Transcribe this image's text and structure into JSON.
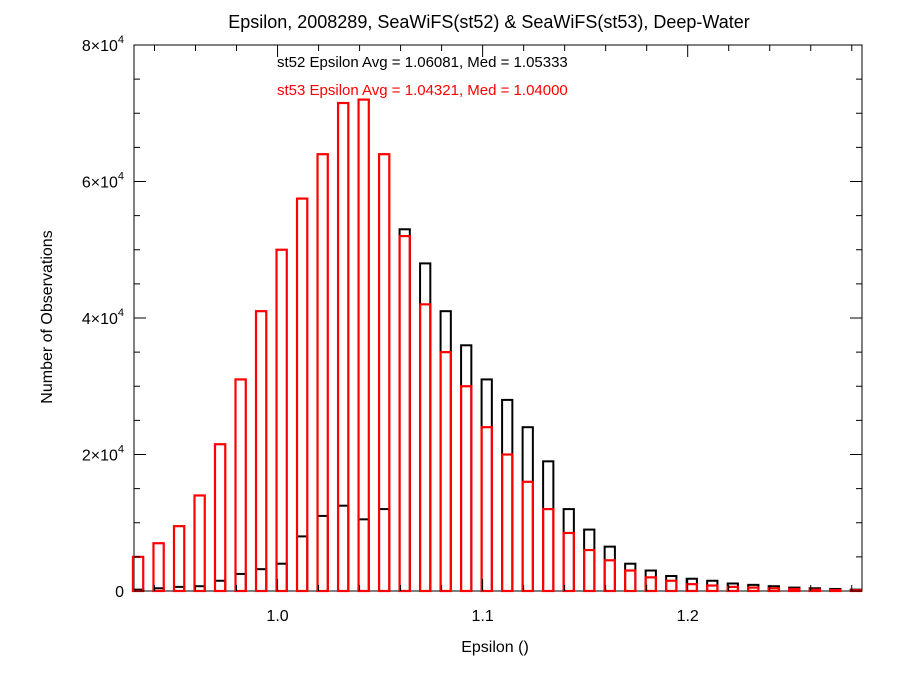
{
  "chart_data": {
    "type": "histogram",
    "title": "Epsilon, 2008289, SeaWiFS(st52) & SeaWiFS(st53), Deep-Water",
    "xlabel": "Epsilon ()",
    "ylabel": "Number of Observations",
    "xlim": [
      0.93,
      1.285
    ],
    "ylim": [
      0,
      80000
    ],
    "x_ticks": [
      {
        "value": 1.0,
        "label": "1.0"
      },
      {
        "value": 1.1,
        "label": "1.1"
      },
      {
        "value": 1.2,
        "label": "1.2"
      }
    ],
    "y_ticks": [
      {
        "value": 0,
        "mantissa": "0",
        "exponent": ""
      },
      {
        "value": 20000,
        "mantissa": "2×10",
        "exponent": "4"
      },
      {
        "value": 40000,
        "mantissa": "4×10",
        "exponent": "4"
      },
      {
        "value": 60000,
        "mantissa": "6×10",
        "exponent": "4"
      },
      {
        "value": 80000,
        "mantissa": "8×10",
        "exponent": "4"
      }
    ],
    "annotations": [
      {
        "text": "st52 Epsilon Avg = 1.06081, Med = 1.05333",
        "color": "#000000"
      },
      {
        "text": "st53 Epsilon Avg = 1.04321, Med = 1.04000",
        "color": "#ff0000"
      }
    ],
    "series": [
      {
        "name": "st52",
        "color": "#000000",
        "x": [
          0.932,
          0.942,
          0.952,
          0.962,
          0.972,
          0.982,
          0.992,
          1.002,
          1.012,
          1.022,
          1.032,
          1.042,
          1.052,
          1.062,
          1.072,
          1.082,
          1.092,
          1.102,
          1.112,
          1.122,
          1.132,
          1.142,
          1.152,
          1.162,
          1.172,
          1.182,
          1.192,
          1.202,
          1.212,
          1.222,
          1.232,
          1.242,
          1.252,
          1.262,
          1.272,
          1.282
        ],
        "y": [
          200,
          400,
          600,
          700,
          1500,
          2500,
          3200,
          4000,
          8000,
          11000,
          12500,
          10500,
          12000,
          53000,
          48000,
          41000,
          36000,
          31000,
          28000,
          24000,
          19000,
          12000,
          9000,
          6500,
          4000,
          3000,
          2200,
          1800,
          1500,
          1100,
          900,
          700,
          500,
          400,
          300,
          200
        ]
      },
      {
        "name": "st53",
        "color": "#ff0000",
        "x": [
          0.932,
          0.942,
          0.952,
          0.962,
          0.972,
          0.982,
          0.992,
          1.002,
          1.012,
          1.022,
          1.032,
          1.042,
          1.052,
          1.062,
          1.072,
          1.082,
          1.092,
          1.102,
          1.112,
          1.122,
          1.132,
          1.142,
          1.152,
          1.162,
          1.172,
          1.182,
          1.192,
          1.202,
          1.212,
          1.222,
          1.232,
          1.242,
          1.252,
          1.262,
          1.272,
          1.282
        ],
        "y": [
          5000,
          7000,
          9500,
          14000,
          21500,
          31000,
          41000,
          50000,
          57500,
          64000,
          71500,
          72000,
          64000,
          52000,
          42000,
          35000,
          30000,
          24000,
          20000,
          16000,
          12000,
          8500,
          6000,
          4500,
          3000,
          2000,
          1500,
          1000,
          800,
          600,
          500,
          400,
          300,
          200,
          150,
          100
        ]
      }
    ],
    "grid": false,
    "legend": "none"
  }
}
